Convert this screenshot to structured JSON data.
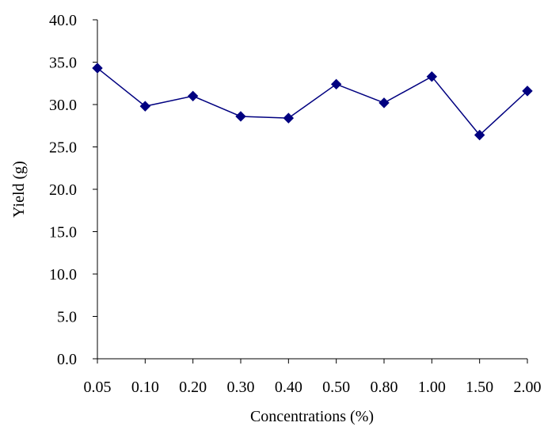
{
  "chart_data": {
    "type": "line",
    "categories": [
      "0.05",
      "0.10",
      "0.20",
      "0.30",
      "0.40",
      "0.50",
      "0.80",
      "1.00",
      "1.50",
      "2.00"
    ],
    "series": [
      {
        "values": [
          34.3,
          29.8,
          31.0,
          28.6,
          28.4,
          32.4,
          30.2,
          33.3,
          26.4,
          31.6
        ],
        "color": "#000080",
        "marker": "diamond"
      }
    ],
    "xlabel": "Concentrations (%)",
    "ylabel": "Yield (g)",
    "ylim": [
      0,
      40
    ],
    "yticks": [
      "0.0",
      "5.0",
      "10.0",
      "15.0",
      "20.0",
      "25.0",
      "30.0",
      "35.0",
      "40.0"
    ],
    "grid": false,
    "legend": "none"
  }
}
